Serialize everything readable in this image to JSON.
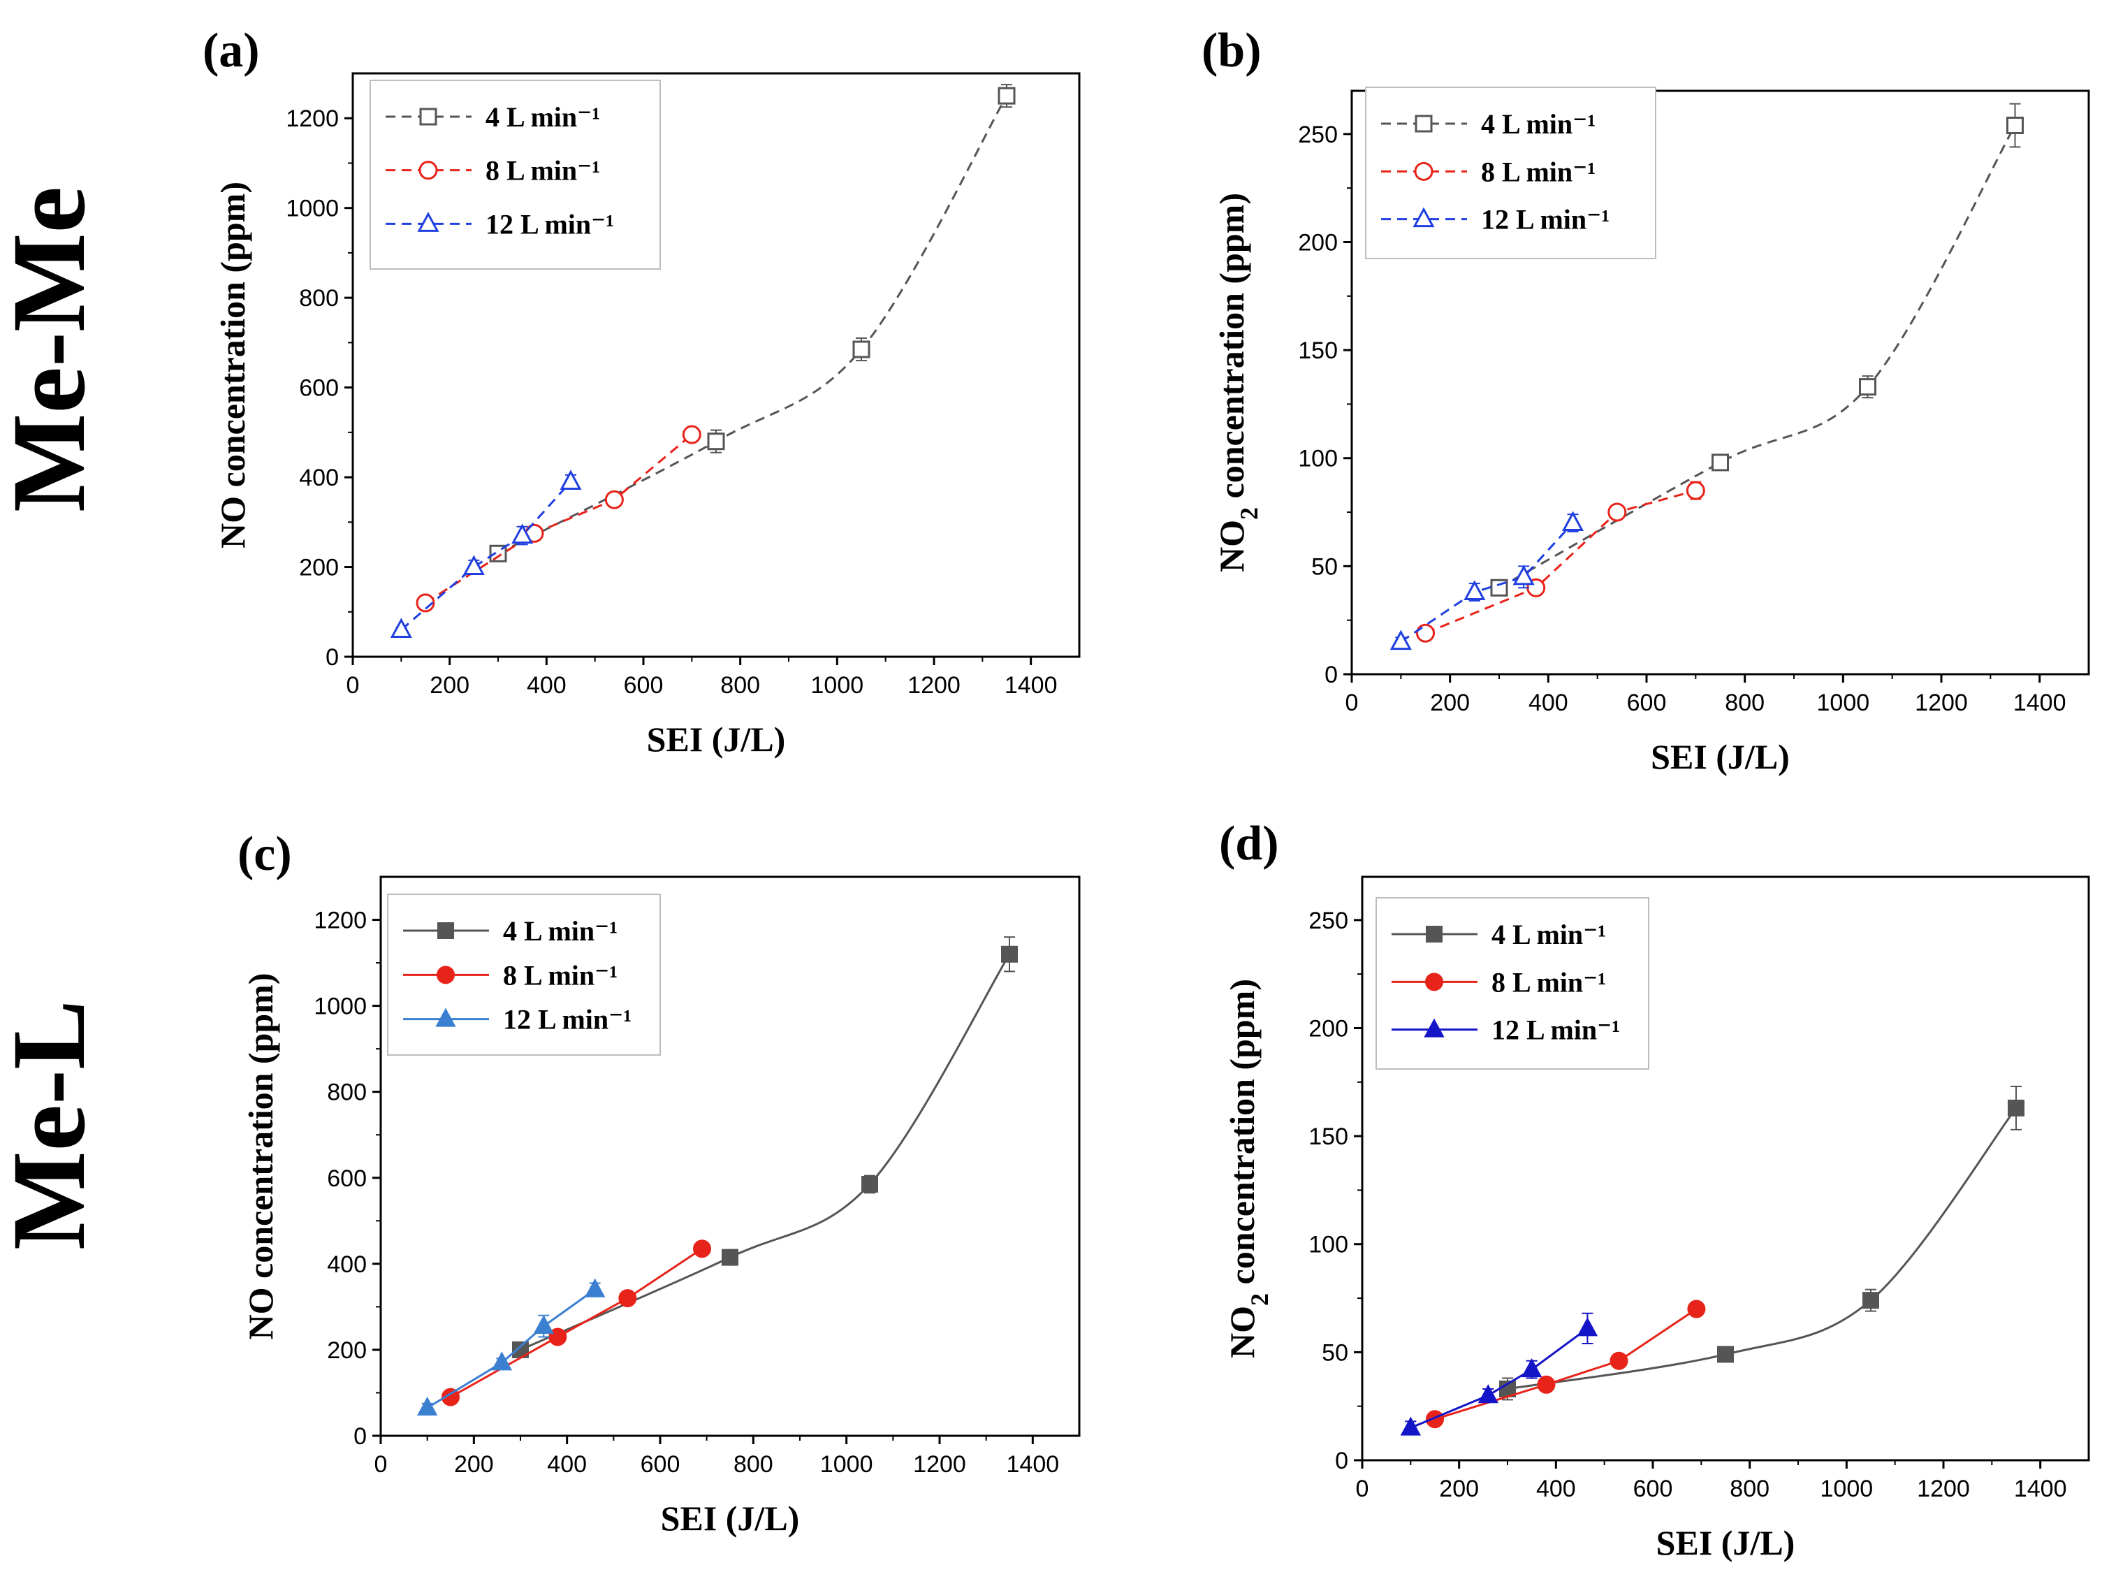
{
  "row_labels": [
    "Me-Me",
    "Me-L"
  ],
  "chart_data": [
    {
      "panel_label": "(a)",
      "type": "line",
      "xlabel": "SEI (J/L)",
      "ylabel": "NO concentration (ppm)",
      "ylabel_sub": "",
      "xlim": [
        0,
        1500
      ],
      "ylim": [
        0,
        1300
      ],
      "xticks": [
        0,
        200,
        400,
        600,
        800,
        1000,
        1200,
        1400
      ],
      "yticks": [
        0,
        200,
        400,
        600,
        800,
        1000,
        1200
      ],
      "legend_position": "top-left",
      "line_style": "dashed",
      "filled_markers": false,
      "grid": false,
      "series": [
        {
          "name": "4 L min⁻¹",
          "color": "#555555",
          "marker": "square",
          "smooth": true,
          "x": [
            300,
            750,
            1050,
            1350
          ],
          "y": [
            230,
            480,
            685,
            1250
          ],
          "err": [
            15,
            25,
            25,
            25
          ]
        },
        {
          "name": "8 L min⁻¹",
          "color": "#e8231a",
          "marker": "circle",
          "smooth": false,
          "x": [
            150,
            375,
            540,
            700
          ],
          "y": [
            120,
            275,
            350,
            495
          ],
          "err": [
            10,
            10,
            10,
            15
          ]
        },
        {
          "name": "12 L min⁻¹",
          "color": "#1f3fe0",
          "marker": "triangle",
          "smooth": false,
          "x": [
            100,
            250,
            350,
            450
          ],
          "y": [
            60,
            200,
            270,
            390
          ],
          "err": [
            5,
            15,
            20,
            15
          ]
        }
      ]
    },
    {
      "panel_label": "(b)",
      "type": "line",
      "xlabel": "SEI (J/L)",
      "ylabel": "NO",
      "ylabel_sub": "2",
      "ylabel_rest": " concentration (ppm)",
      "xlim": [
        0,
        1500
      ],
      "ylim": [
        0,
        270
      ],
      "xticks": [
        0,
        200,
        400,
        600,
        800,
        1000,
        1200,
        1400
      ],
      "yticks": [
        0,
        50,
        100,
        150,
        200,
        250
      ],
      "legend_position": "top-left",
      "line_style": "dashed",
      "filled_markers": false,
      "grid": false,
      "series": [
        {
          "name": "4 L min⁻¹",
          "color": "#555555",
          "marker": "square",
          "smooth": true,
          "x": [
            300,
            750,
            1050,
            1350
          ],
          "y": [
            40,
            98,
            133,
            254
          ],
          "err": [
            3,
            3,
            5,
            10
          ]
        },
        {
          "name": "8 L min⁻¹",
          "color": "#e8231a",
          "marker": "circle",
          "smooth": false,
          "x": [
            150,
            375,
            540,
            700
          ],
          "y": [
            19,
            40,
            75,
            85
          ],
          "err": [
            3,
            3,
            3,
            4
          ]
        },
        {
          "name": "12 L min⁻¹",
          "color": "#1f3fe0",
          "marker": "triangle",
          "smooth": false,
          "x": [
            100,
            250,
            350,
            450
          ],
          "y": [
            15,
            38,
            45,
            70
          ],
          "err": [
            2,
            4,
            5,
            4
          ]
        }
      ]
    },
    {
      "panel_label": "(c)",
      "type": "line",
      "xlabel": "SEI (J/L)",
      "ylabel": "NO concentration (ppm)",
      "ylabel_sub": "",
      "xlim": [
        0,
        1500
      ],
      "ylim": [
        0,
        1300
      ],
      "xticks": [
        0,
        200,
        400,
        600,
        800,
        1000,
        1200,
        1400
      ],
      "yticks": [
        0,
        200,
        400,
        600,
        800,
        1000,
        1200
      ],
      "legend_position": "top-left",
      "line_style": "solid",
      "filled_markers": true,
      "grid": false,
      "series": [
        {
          "name": "4 L min⁻¹",
          "color": "#555555",
          "marker": "square",
          "smooth": true,
          "x": [
            300,
            750,
            1050,
            1350
          ],
          "y": [
            200,
            415,
            585,
            1120
          ],
          "err": [
            10,
            10,
            20,
            40
          ]
        },
        {
          "name": "8 L min⁻¹",
          "color": "#e8231a",
          "marker": "circle",
          "smooth": false,
          "x": [
            150,
            380,
            530,
            690
          ],
          "y": [
            90,
            230,
            320,
            435
          ],
          "err": [
            5,
            5,
            5,
            5
          ]
        },
        {
          "name": "12 L min⁻¹",
          "color": "#3a7fd0",
          "marker": "triangle",
          "smooth": false,
          "x": [
            100,
            260,
            350,
            460
          ],
          "y": [
            65,
            170,
            255,
            340
          ],
          "err": [
            10,
            10,
            25,
            15
          ]
        }
      ]
    },
    {
      "panel_label": "(d)",
      "type": "line",
      "xlabel": "SEI (J/L)",
      "ylabel": "NO",
      "ylabel_sub": "2",
      "ylabel_rest": " concentration (ppm)",
      "xlim": [
        0,
        1500
      ],
      "ylim": [
        0,
        270
      ],
      "xticks": [
        0,
        200,
        400,
        600,
        800,
        1000,
        1200,
        1400
      ],
      "yticks": [
        0,
        50,
        100,
        150,
        200,
        250
      ],
      "legend_position": "top-left",
      "line_style": "solid",
      "filled_markers": true,
      "grid": false,
      "series": [
        {
          "name": "4 L min⁻¹",
          "color": "#555555",
          "marker": "square",
          "smooth": true,
          "x": [
            300,
            750,
            1050,
            1350
          ],
          "y": [
            33,
            49,
            74,
            163
          ],
          "err": [
            5,
            3,
            5,
            10
          ]
        },
        {
          "name": "8 L min⁻¹",
          "color": "#e8231a",
          "marker": "circle",
          "smooth": false,
          "x": [
            150,
            380,
            530,
            690
          ],
          "y": [
            19,
            35,
            46,
            70
          ],
          "err": [
            2,
            2,
            2,
            2
          ]
        },
        {
          "name": "12 L min⁻¹",
          "color": "#1515c8",
          "marker": "triangle",
          "smooth": false,
          "x": [
            100,
            260,
            350,
            465
          ],
          "y": [
            15,
            30,
            42,
            61
          ],
          "err": [
            3,
            3,
            4,
            7
          ]
        }
      ]
    }
  ]
}
